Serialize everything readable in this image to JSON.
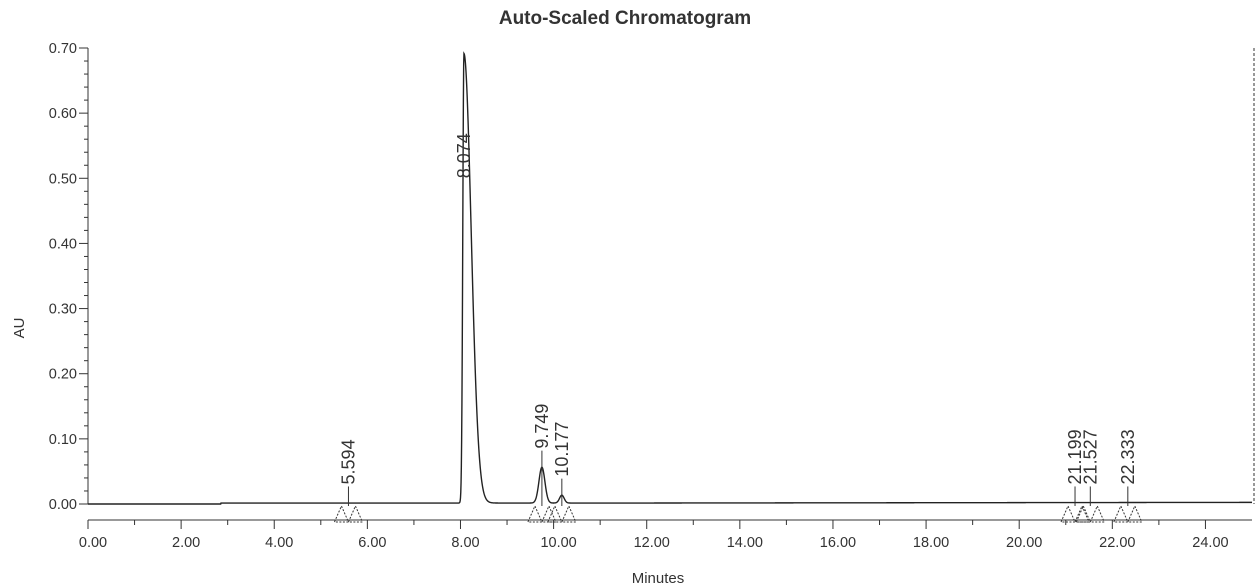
{
  "chart_data": {
    "type": "line",
    "title": "Auto-Scaled Chromatogram",
    "xlabel": "Minutes",
    "ylabel": "AU",
    "xlim": [
      0.0,
      25.0
    ],
    "ylim": [
      0.0,
      0.7
    ],
    "x_ticks": [
      "0.00",
      "2.00",
      "4.00",
      "6.00",
      "8.00",
      "10.00",
      "12.00",
      "14.00",
      "16.00",
      "18.00",
      "20.00",
      "22.00",
      "24.00"
    ],
    "y_ticks": [
      "0.00",
      "0.10",
      "0.20",
      "0.30",
      "0.40",
      "0.50",
      "0.60",
      "0.70"
    ],
    "baseline_au": 0.0,
    "peaks": [
      {
        "label": "5.594",
        "rt": 5.594,
        "height": 0.0
      },
      {
        "label": "8.074",
        "rt": 8.074,
        "height": 0.69
      },
      {
        "label": "9.749",
        "rt": 9.749,
        "height": 0.055
      },
      {
        "label": "10.177",
        "rt": 10.177,
        "height": 0.012
      },
      {
        "label": "21.199",
        "rt": 21.199,
        "height": 0.0
      },
      {
        "label": "21.527",
        "rt": 21.527,
        "height": 0.0
      },
      {
        "label": "22.333",
        "rt": 22.333,
        "height": 0.0
      }
    ]
  }
}
